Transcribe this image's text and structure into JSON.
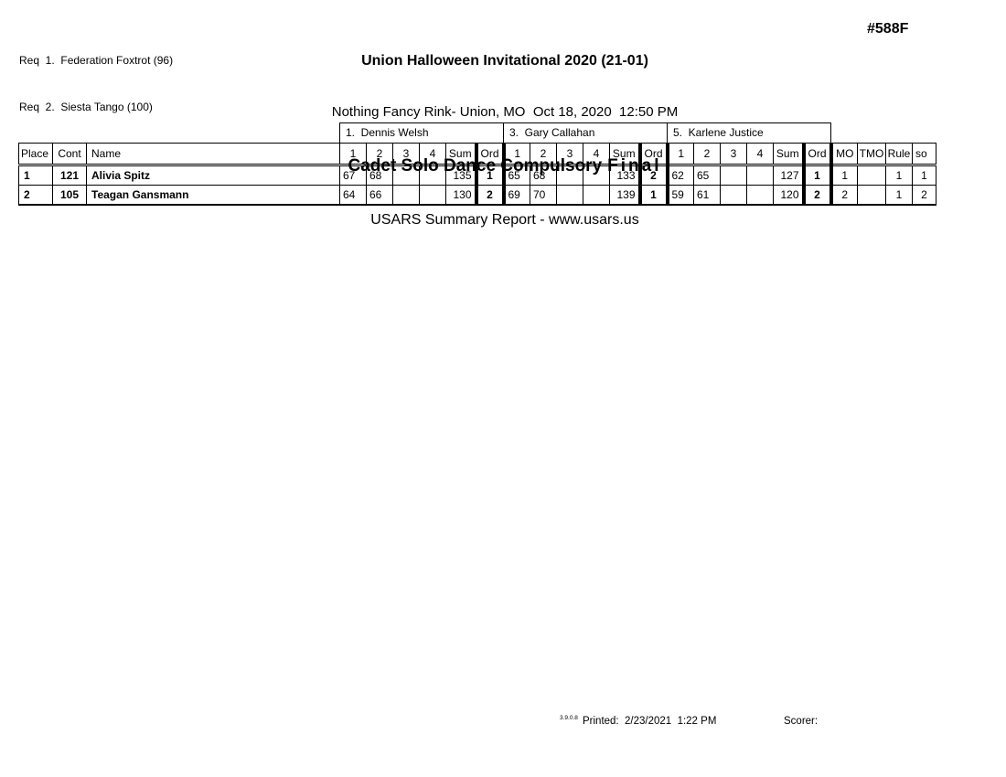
{
  "page": {
    "doc_number": "#588F",
    "colors": {
      "text": "#000000",
      "background": "#ffffff",
      "border": "#000000"
    },
    "requirements": [
      "Req  1.  Federation Foxtrot (96)",
      "Req  2.  Siesta Tango (100)"
    ],
    "header": {
      "event_title": "Union Halloween Invitational 2020 (21-01)",
      "venue_line": "Nothing Fancy Rink- Union, MO  Oct 18, 2020  12:50 PM",
      "category_title": "Cadet Solo Dance Compulsory",
      "category_title_final": "Final",
      "report_line": "USARS Summary Report - www.usars.us"
    },
    "footer": {
      "version": "3.9.0.8",
      "printed": "Printed:  2/23/2021  1:22 PM",
      "scorer_label": "Scorer:"
    }
  },
  "table": {
    "judges": [
      "1.  Dennis Welsh",
      "3.  Gary Callahan",
      "5.  Karlene Justice"
    ],
    "left_headers": [
      "Place",
      "Cont",
      "Name"
    ],
    "judge_subheaders": [
      "1",
      "2",
      "3",
      "4",
      "Sum",
      "Ord"
    ],
    "right_headers": [
      "MO",
      "TMO",
      "Rule",
      "so"
    ],
    "rows": [
      {
        "place": "1",
        "cont": "121",
        "name": "Alivia Spitz",
        "judges": [
          {
            "scores": [
              "67",
              "68",
              "",
              ""
            ],
            "sum": "135",
            "ord": "1"
          },
          {
            "scores": [
              "65",
              "68",
              "",
              ""
            ],
            "sum": "133",
            "ord": "2"
          },
          {
            "scores": [
              "62",
              "65",
              "",
              ""
            ],
            "sum": "127",
            "ord": "1"
          }
        ],
        "mo": "1",
        "tmo": "",
        "rule": "1",
        "so": "1"
      },
      {
        "place": "2",
        "cont": "105",
        "name": "Teagan Gansmann",
        "judges": [
          {
            "scores": [
              "64",
              "66",
              "",
              ""
            ],
            "sum": "130",
            "ord": "2"
          },
          {
            "scores": [
              "69",
              "70",
              "",
              ""
            ],
            "sum": "139",
            "ord": "1"
          },
          {
            "scores": [
              "59",
              "61",
              "",
              ""
            ],
            "sum": "120",
            "ord": "2"
          }
        ],
        "mo": "2",
        "tmo": "",
        "rule": "1",
        "so": "2"
      }
    ]
  }
}
